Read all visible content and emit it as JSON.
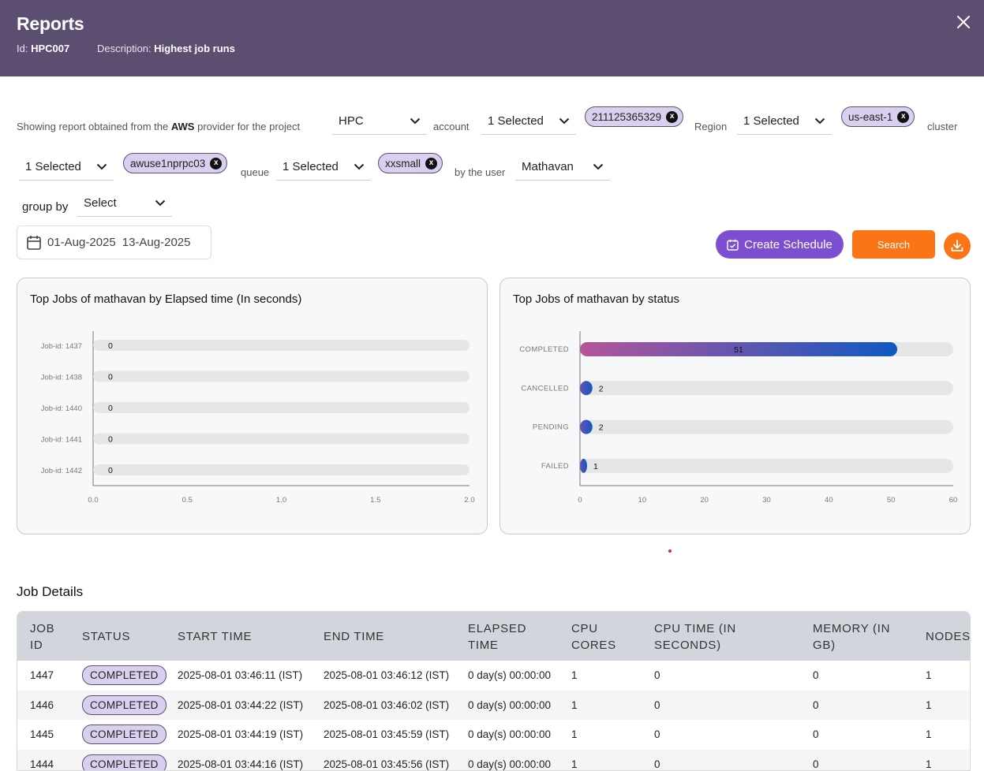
{
  "header": {
    "title": "Reports",
    "id_label": "Id:",
    "id_value": "HPC007",
    "desc_label": "Description:",
    "desc_value": "Highest job runs"
  },
  "filters": {
    "intro_text": "Showing report obtained from the",
    "provider": "AWS",
    "provider_suffix": "provider for the project",
    "project_value": "HPC",
    "account_label": "account",
    "account_value": "1 Selected",
    "account_chip": "211125365329",
    "region_label": "Region",
    "region_value": "1 Selected",
    "region_chip": "us-east-1",
    "cluster_label": "cluster",
    "cluster_value": "1 Selected",
    "cluster_chip": "awuse1nprpc03",
    "queue_label": "queue",
    "queue_value": "1 Selected",
    "queue_chip": "xxsmall",
    "user_label": "by the user",
    "user_value": "Mathavan",
    "groupby_label": "group by",
    "groupby_value": "Select",
    "chip_close": "x"
  },
  "date_range": {
    "start": "01-Aug-2025",
    "end": "13-Aug-2025"
  },
  "actions": {
    "create_schedule": "Create Schedule",
    "search": "Search"
  },
  "chart_data": [
    {
      "type": "bar",
      "orientation": "horizontal",
      "title": "Top Jobs of mathavan by Elapsed time (In seconds)",
      "categories": [
        "Job-id: 1437",
        "Job-id: 1438",
        "Job-id: 1440",
        "Job-id: 1441",
        "Job-id: 1442"
      ],
      "values": [
        0,
        0,
        0,
        0,
        0
      ],
      "xlim": [
        0,
        2.0
      ],
      "xticks": [
        "0.0",
        "0.5",
        "1.0",
        "1.5",
        "2.0"
      ],
      "grid": false
    },
    {
      "type": "bar",
      "orientation": "horizontal",
      "title": "Top Jobs of mathavan by status",
      "categories": [
        "COMPLETED",
        "CANCELLED",
        "PENDING",
        "FAILED"
      ],
      "values": [
        51,
        2,
        2,
        1
      ],
      "xlim": [
        0,
        60
      ],
      "xticks": [
        "0",
        "10",
        "20",
        "30",
        "40",
        "50",
        "60"
      ],
      "grid": false
    }
  ],
  "job_details": {
    "title": "Job Details",
    "columns": [
      [
        "JOB",
        "ID"
      ],
      [
        "STATUS"
      ],
      [
        "START TIME"
      ],
      [
        "END TIME"
      ],
      [
        "ELAPSED",
        "TIME"
      ],
      [
        "CPU",
        "CORES"
      ],
      [
        "CPU TIME (IN",
        "SECONDS)"
      ],
      [
        "MEMORY (IN",
        "GB)"
      ],
      [
        "NODES"
      ]
    ],
    "rows": [
      [
        "1447",
        "COMPLETED",
        "2025-08-01 03:46:11 (IST)",
        "2025-08-01 03:46:12 (IST)",
        "0 day(s) 00:00:00",
        "1",
        "0",
        "0",
        "1"
      ],
      [
        "1446",
        "COMPLETED",
        "2025-08-01 03:44:22 (IST)",
        "2025-08-01 03:46:02 (IST)",
        "0 day(s) 00:00:00",
        "1",
        "0",
        "0",
        "1"
      ],
      [
        "1445",
        "COMPLETED",
        "2025-08-01 03:44:19 (IST)",
        "2025-08-01 03:45:59 (IST)",
        "0 day(s) 00:00:00",
        "1",
        "0",
        "0",
        "1"
      ],
      [
        "1444",
        "COMPLETED",
        "2025-08-01 03:44:16 (IST)",
        "2025-08-01 03:45:56 (IST)",
        "0 day(s) 00:00:00",
        "1",
        "0",
        "0",
        "1"
      ]
    ]
  },
  "colors": {
    "header_bg": "#5c4e70",
    "chip_bg": "#d9cfee",
    "accent_purple": "#7c4ed0",
    "accent_orange": "#fb7416",
    "bar_gradient_start": "#b4559b",
    "bar_gradient_end": "#1058c2"
  },
  "icons": {
    "close": "close-icon",
    "chevron": "chevron-down-icon",
    "calendar": "calendar-icon",
    "schedule": "calendar-check-icon",
    "download": "download-icon"
  }
}
